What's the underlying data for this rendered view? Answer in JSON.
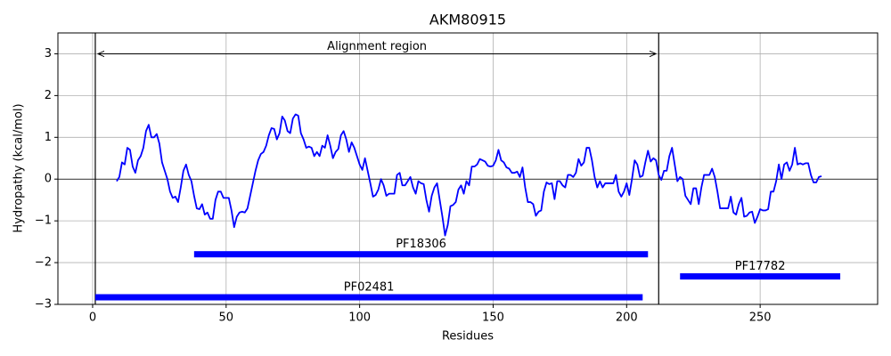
{
  "chart_data": {
    "type": "line",
    "title": "AKM80915",
    "x_label": "Residues",
    "y_label": "Hydropathy (kcal/mol)",
    "color": "blue",
    "grid": true,
    "xlim": [
      -13,
      294
    ],
    "ylim": [
      -3,
      3.5
    ],
    "xticks": [
      0,
      50,
      100,
      150,
      200,
      250
    ],
    "yticks": [
      {
        "value": -3,
        "label": "−3"
      },
      {
        "value": -2,
        "label": "−2"
      },
      {
        "value": -1,
        "label": "−1"
      },
      0,
      1,
      2,
      3
    ],
    "hline": 0,
    "vlines": [
      1,
      212
    ],
    "region": {
      "label": "Alignment region",
      "start": 2,
      "end": 211,
      "y": 3
    },
    "domains": [
      {
        "name": "PF18306",
        "start": 38,
        "end": 208,
        "y": -1.8,
        "color": "blue"
      },
      {
        "name": "PF17782",
        "start": 220,
        "end": 280,
        "y": -2.33,
        "color": "blue"
      },
      {
        "name": "PF02481",
        "start": 1,
        "end": 206,
        "y": -2.83,
        "color": "blue"
      }
    ],
    "x": [
      9,
      10,
      11,
      12,
      13,
      14,
      15,
      16,
      17,
      18,
      19,
      20,
      21,
      22,
      23,
      24,
      25,
      26,
      27,
      28,
      29,
      30,
      31,
      32,
      33,
      34,
      35,
      36,
      37,
      38,
      39,
      40,
      41,
      42,
      43,
      44,
      45,
      46,
      47,
      48,
      49,
      50,
      51,
      52,
      53,
      54,
      55,
      56,
      57,
      58,
      59,
      60,
      61,
      62,
      63,
      64,
      65,
      66,
      67,
      68,
      69,
      70,
      71,
      72,
      73,
      74,
      75,
      76,
      77,
      78,
      79,
      80,
      81,
      82,
      83,
      84,
      85,
      86,
      87,
      88,
      89,
      90,
      91,
      92,
      93,
      94,
      95,
      96,
      97,
      98,
      99,
      100,
      101,
      102,
      103,
      104,
      105,
      106,
      107,
      108,
      109,
      110,
      111,
      112,
      113,
      114,
      115,
      116,
      117,
      118,
      119,
      120,
      121,
      122,
      123,
      124,
      125,
      126,
      127,
      128,
      129,
      130,
      131,
      132,
      133,
      134,
      135,
      136,
      137,
      138,
      139,
      140,
      141,
      142,
      143,
      144,
      145,
      146,
      147,
      148,
      149,
      150,
      151,
      152,
      153,
      154,
      155,
      156,
      157,
      158,
      159,
      160,
      161,
      162,
      163,
      164,
      165,
      166,
      167,
      168,
      169,
      170,
      171,
      172,
      173,
      174,
      175,
      176,
      177,
      178,
      179,
      180,
      181,
      182,
      183,
      184,
      185,
      186,
      187,
      188,
      189,
      190,
      191,
      192,
      193,
      194,
      195,
      196,
      197,
      198,
      199,
      200,
      201,
      202,
      203,
      204,
      205,
      206,
      207,
      208,
      209,
      210,
      211,
      212,
      213,
      214,
      215,
      216,
      217,
      218,
      219,
      220,
      221,
      222,
      223,
      224,
      225,
      226,
      227,
      228,
      229,
      230,
      231,
      232,
      233,
      234,
      235,
      236,
      237,
      238,
      239,
      240,
      241,
      242,
      243,
      244,
      245,
      246,
      247,
      248,
      249,
      250,
      251,
      252,
      253,
      254,
      255,
      256,
      257,
      258,
      259,
      260,
      261,
      262,
      263,
      264,
      265,
      266,
      267,
      268,
      269,
      270,
      271,
      272,
      273
    ],
    "values": [
      -0.05,
      0.05,
      0.4,
      0.35,
      0.75,
      0.7,
      0.3,
      0.15,
      0.45,
      0.55,
      0.75,
      1.15,
      1.3,
      1.0,
      1.0,
      1.08,
      0.85,
      0.4,
      0.2,
      0.0,
      -0.3,
      -0.45,
      -0.42,
      -0.55,
      -0.2,
      0.2,
      0.35,
      0.1,
      -0.05,
      -0.4,
      -0.7,
      -0.72,
      -0.6,
      -0.85,
      -0.8,
      -0.95,
      -0.95,
      -0.5,
      -0.3,
      -0.3,
      -0.45,
      -0.45,
      -0.45,
      -0.75,
      -1.15,
      -0.9,
      -0.8,
      -0.78,
      -0.8,
      -0.7,
      -0.4,
      -0.1,
      0.2,
      0.45,
      0.6,
      0.65,
      0.8,
      1.05,
      1.22,
      1.2,
      0.95,
      1.1,
      1.5,
      1.4,
      1.15,
      1.1,
      1.45,
      1.55,
      1.52,
      1.1,
      0.95,
      0.75,
      0.78,
      0.75,
      0.55,
      0.65,
      0.55,
      0.8,
      0.75,
      1.05,
      0.8,
      0.5,
      0.65,
      0.72,
      1.05,
      1.15,
      0.95,
      0.65,
      0.88,
      0.75,
      0.55,
      0.35,
      0.22,
      0.5,
      0.2,
      -0.1,
      -0.42,
      -0.38,
      -0.25,
      0.0,
      -0.15,
      -0.4,
      -0.35,
      -0.35,
      -0.35,
      0.1,
      0.15,
      -0.15,
      -0.15,
      -0.05,
      0.05,
      -0.2,
      -0.35,
      -0.05,
      -0.1,
      -0.12,
      -0.5,
      -0.78,
      -0.4,
      -0.2,
      -0.1,
      -0.5,
      -0.9,
      -1.35,
      -1.1,
      -0.65,
      -0.62,
      -0.55,
      -0.25,
      -0.15,
      -0.35,
      -0.05,
      -0.15,
      0.3,
      0.3,
      0.35,
      0.48,
      0.45,
      0.42,
      0.32,
      0.3,
      0.32,
      0.45,
      0.7,
      0.45,
      0.4,
      0.28,
      0.25,
      0.15,
      0.15,
      0.18,
      0.05,
      0.28,
      -0.2,
      -0.55,
      -0.55,
      -0.6,
      -0.88,
      -0.78,
      -0.75,
      -0.3,
      -0.08,
      -0.12,
      -0.1,
      -0.48,
      -0.05,
      -0.05,
      -0.15,
      -0.2,
      0.1,
      0.1,
      0.05,
      0.15,
      0.48,
      0.32,
      0.4,
      0.75,
      0.75,
      0.45,
      0.05,
      -0.2,
      -0.05,
      -0.2,
      -0.1,
      -0.1,
      -0.1,
      -0.1,
      0.1,
      -0.3,
      -0.42,
      -0.3,
      -0.1,
      -0.38,
      0.0,
      0.45,
      0.35,
      0.05,
      0.08,
      0.4,
      0.68,
      0.42,
      0.5,
      0.45,
      0.1,
      -0.02,
      0.2,
      0.2,
      0.55,
      0.75,
      0.35,
      -0.05,
      0.05,
      0.0,
      -0.4,
      -0.5,
      -0.6,
      -0.22,
      -0.22,
      -0.6,
      -0.2,
      0.1,
      0.1,
      0.1,
      0.25,
      0.05,
      -0.3,
      -0.7,
      -0.7,
      -0.7,
      -0.7,
      -0.42,
      -0.8,
      -0.85,
      -0.6,
      -0.45,
      -0.9,
      -0.88,
      -0.8,
      -0.78,
      -1.05,
      -0.9,
      -0.72,
      -0.75,
      -0.75,
      -0.72,
      -0.3,
      -0.3,
      -0.05,
      0.35,
      0.0,
      0.35,
      0.4,
      0.2,
      0.35,
      0.75,
      0.35,
      0.38,
      0.35,
      0.38,
      0.38,
      0.1,
      -0.08,
      -0.08,
      0.05,
      0.07
    ]
  }
}
